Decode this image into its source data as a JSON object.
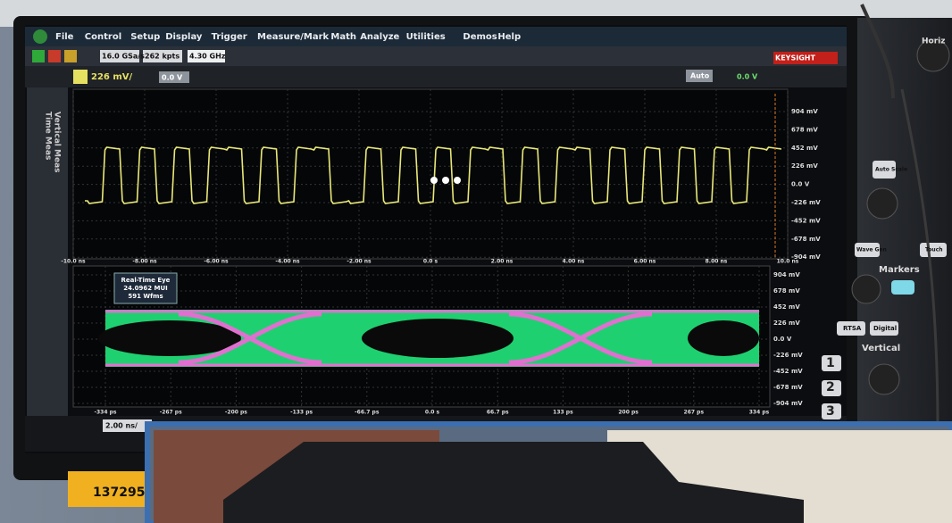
{
  "menu": [
    "File",
    "Control",
    "Setup",
    "Display",
    "Trigger",
    "Measure/Mark",
    "Math",
    "Analyze",
    "Utilities",
    "Demos",
    "Help"
  ],
  "toolbar": {
    "sample_rate": "16.0 GSa/s",
    "points": "262 kpts",
    "bandwidth": "4.30 GHz",
    "channel_scale": "226 mV/",
    "offset": "0.0 V",
    "auto": "Auto",
    "trigger_level": "0.0 V",
    "brand": "KEYSIGHT"
  },
  "side_tabs": [
    "Time Meas",
    "Vertical Meas"
  ],
  "upper_plot": {
    "x_ticks": [
      "-10.0 ns",
      "-8.00 ns",
      "-6.00 ns",
      "-4.00 ns",
      "-2.00 ns",
      "0.0 s",
      "2.00 ns",
      "4.00 ns",
      "6.00 ns",
      "8.00 ns",
      "10.0 ns"
    ],
    "y_ticks": [
      "904 mV",
      "678 mV",
      "452 mV",
      "226 mV",
      "0.0 V",
      "-226 mV",
      "-452 mV",
      "-678 mV",
      "-904 mV"
    ]
  },
  "lower_plot": {
    "eye_box": [
      "Real-Time Eye",
      "24.0962 MUI",
      "591 Wfms"
    ],
    "x_ticks": [
      "-334 ps",
      "-267 ps",
      "-200 ps",
      "-133 ps",
      "-66.7 ps",
      "0.0 s",
      "66.7 ps",
      "133 ps",
      "200 ps",
      "267 ps",
      "334 ps"
    ],
    "y_ticks": [
      "904 mV",
      "678 mV",
      "452 mV",
      "226 mV",
      "0.0 V",
      "-226 mV",
      "-452 mV",
      "-678 mV",
      "-904 mV"
    ]
  },
  "status": {
    "time_scale": "2.00 ns/"
  },
  "front_panel": {
    "horizontal": "Horiz",
    "auto_scale": "Auto Scale",
    "wave_gen": "Wave Gen",
    "touch": "Touch",
    "markers": "Markers",
    "rtsa": "RTSA",
    "digital": "Digital",
    "vertical": "Vertical",
    "channels": [
      "1",
      "2",
      "3"
    ]
  },
  "asset_tag": "137295"
}
